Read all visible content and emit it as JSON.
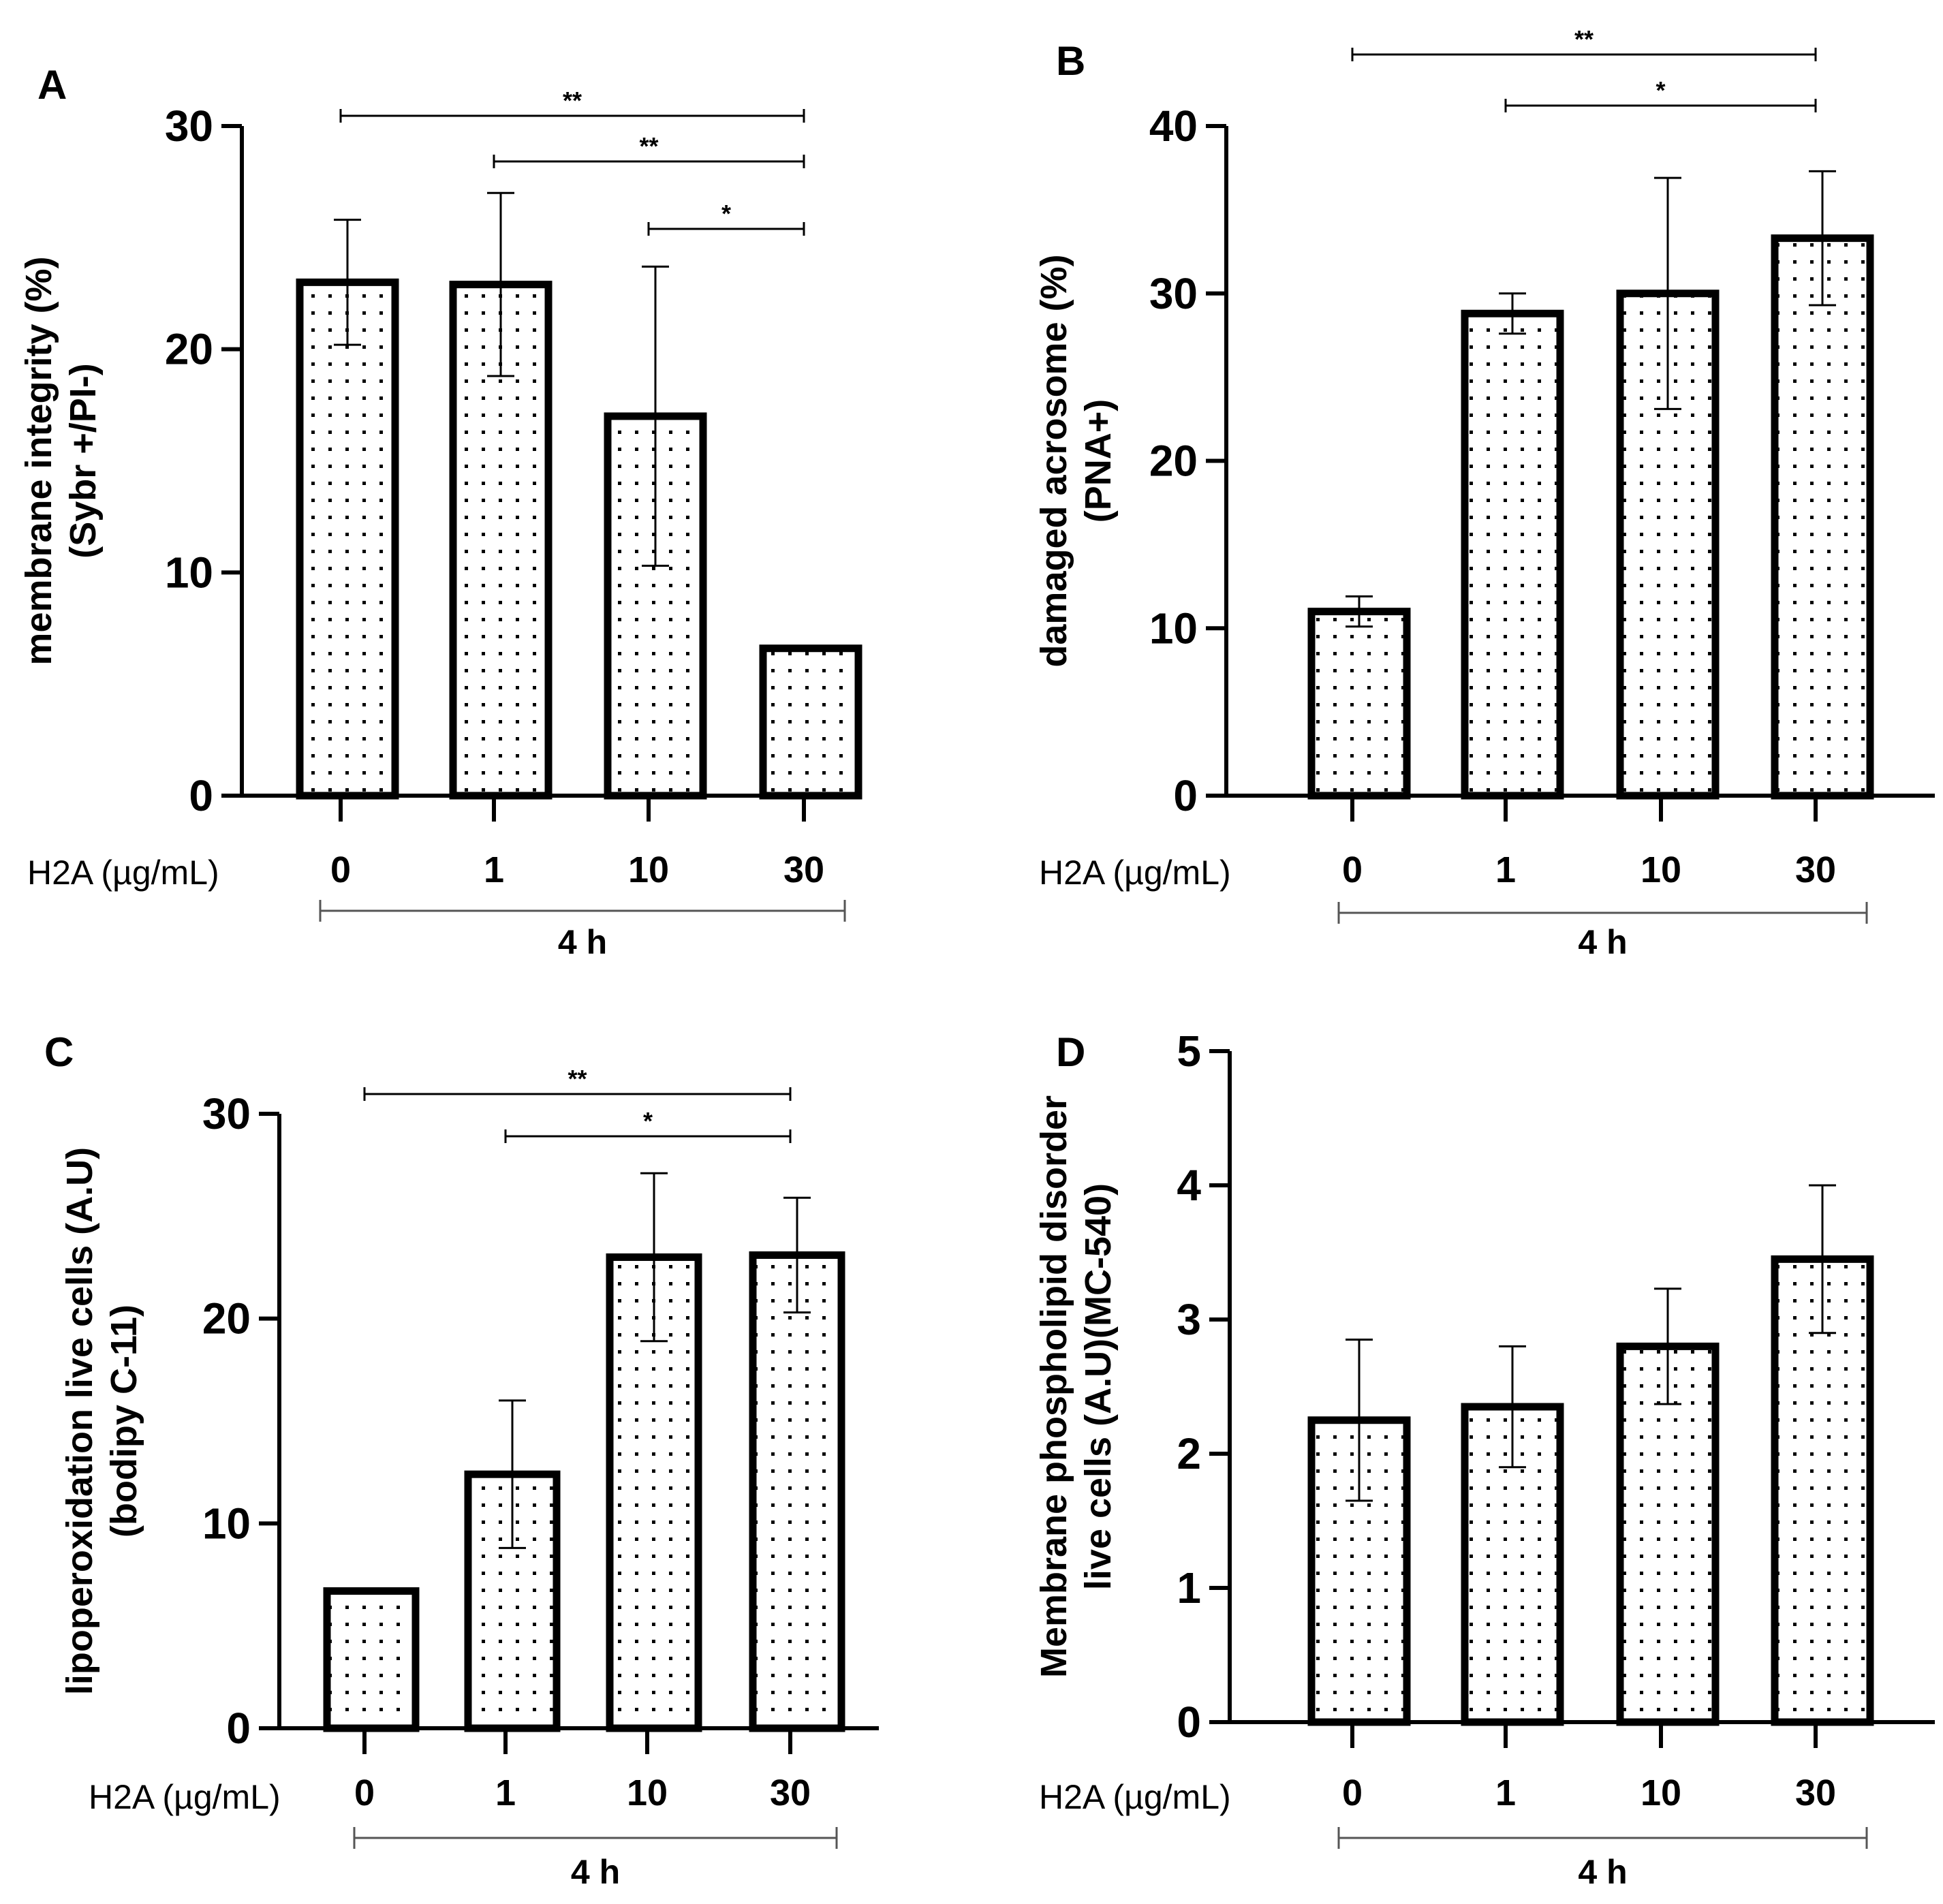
{
  "figure": {
    "x_title": "H2A (µg/mL)",
    "group_label": "4 h"
  },
  "chart_data": [
    {
      "type": "bar",
      "panel": "A",
      "ylabel_line1": "membrane integrity (%)",
      "ylabel_line2": "(Sybr +/PI-)",
      "categories": [
        "0",
        "1",
        "10",
        "30"
      ],
      "values": [
        23,
        22.9,
        17,
        6.6
      ],
      "errors": [
        2.8,
        4.1,
        6.7,
        0.1
      ],
      "ylim": [
        0,
        30
      ],
      "yticks": [
        "0",
        "10",
        "20",
        "30"
      ],
      "brackets": [
        {
          "from": 0,
          "to": 3,
          "label": "**"
        },
        {
          "from": 1,
          "to": 3,
          "label": "**"
        },
        {
          "from": 2,
          "to": 3,
          "label": "*"
        }
      ]
    },
    {
      "type": "bar",
      "panel": "B",
      "ylabel_line1": "damaged acrosome (%)",
      "ylabel_line2": "(PNA+)",
      "categories": [
        "0",
        "1",
        "10",
        "30"
      ],
      "values": [
        11,
        28.8,
        30,
        33.3
      ],
      "errors": [
        0.9,
        1.2,
        6.9,
        4
      ],
      "ylim": [
        0,
        40
      ],
      "yticks": [
        "0",
        "10",
        "20",
        "30",
        "40"
      ],
      "brackets": [
        {
          "from": 0,
          "to": 3,
          "label": "**"
        },
        {
          "from": 1,
          "to": 3,
          "label": "*"
        }
      ]
    },
    {
      "type": "bar",
      "panel": "C",
      "ylabel_line1": "lipoperoxidation live cells (A.U)",
      "ylabel_line2": "(bodipy C-11)",
      "categories": [
        "0",
        "1",
        "10",
        "30"
      ],
      "values": [
        6.7,
        12.4,
        23,
        23.1
      ],
      "errors": [
        0.1,
        3.6,
        4.1,
        2.8
      ],
      "ylim": [
        0,
        30
      ],
      "yticks": [
        "0",
        "10",
        "20",
        "30"
      ],
      "brackets": [
        {
          "from": 0,
          "to": 3,
          "label": "**"
        },
        {
          "from": 1,
          "to": 3,
          "label": "*"
        }
      ]
    },
    {
      "type": "bar",
      "panel": "D",
      "ylabel_line1": "Membrane phospholipid disorder",
      "ylabel_line2": "live cells (A.U)(MC-540)",
      "categories": [
        "0",
        "1",
        "10",
        "30"
      ],
      "values": [
        2.25,
        2.35,
        2.8,
        3.45
      ],
      "errors": [
        0.6,
        0.45,
        0.43,
        0.55
      ],
      "ylim": [
        0,
        5
      ],
      "yticks": [
        "0",
        "1",
        "2",
        "3",
        "4",
        "5"
      ],
      "brackets": []
    }
  ]
}
